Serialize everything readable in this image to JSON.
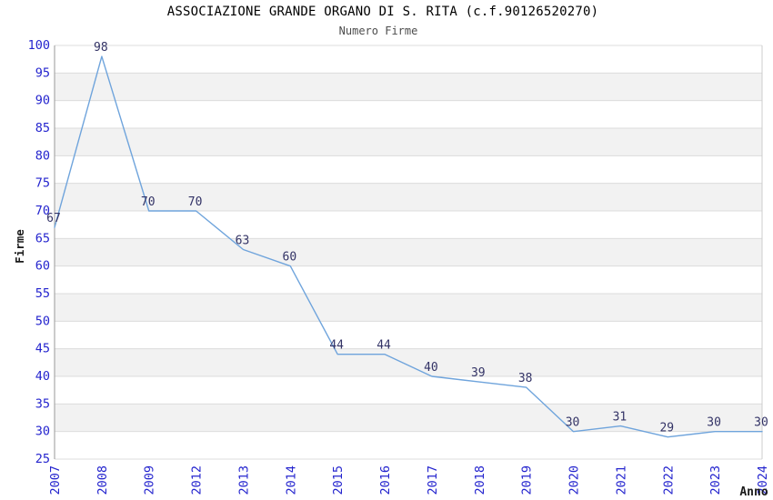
{
  "chart_data": {
    "type": "line",
    "title": "ASSOCIAZIONE GRANDE ORGANO DI S. RITA (c.f.90126520270)",
    "subtitle": "Numero Firme",
    "xlabel": "Anno",
    "ylabel": "Firme",
    "categories": [
      "2007",
      "2008",
      "2009",
      "2012",
      "2013",
      "2014",
      "2015",
      "2016",
      "2017",
      "2018",
      "2019",
      "2020",
      "2021",
      "2022",
      "2023",
      "2024"
    ],
    "values": [
      67,
      98,
      70,
      70,
      63,
      60,
      44,
      44,
      40,
      39,
      38,
      30,
      31,
      29,
      30,
      30
    ],
    "data_labels_visible": true,
    "ylim": [
      25,
      100
    ],
    "ytick_step": 5,
    "ytick_labels": [
      "25",
      "30",
      "35",
      "40",
      "45",
      "50",
      "55",
      "60",
      "65",
      "70",
      "75",
      "80",
      "85",
      "90",
      "95",
      "100"
    ],
    "grid": "horizontal",
    "alternating_bands": true,
    "legend": "none",
    "markers": "none",
    "colors": {
      "line": "#6FA4DC",
      "data_label": "#333366",
      "tick_label": "#2424CE",
      "title": "#000000",
      "subtitle": "#4d4d4d",
      "axis_title": "#1a1a1a",
      "band": "#F2F2F2",
      "gridline": "#DCDCDC",
      "axis_line": "#999999",
      "plot_border": "#CCCCCC",
      "background": "#FFFFFF"
    }
  }
}
